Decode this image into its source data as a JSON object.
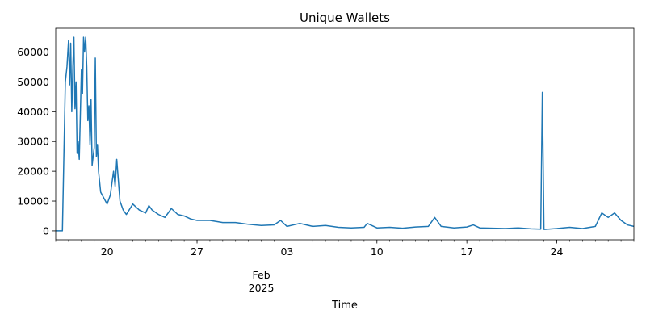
{
  "chart_data": {
    "type": "line",
    "title": "Unique Wallets",
    "xlabel": "Time",
    "ylabel": "",
    "grid": false,
    "legend": "none",
    "xlim": [
      "2025-01-16",
      "2025-03-02"
    ],
    "ylim": [
      -3000,
      68000
    ],
    "yticks": [
      0,
      10000,
      20000,
      30000,
      40000,
      50000,
      60000
    ],
    "ytick_labels": [
      "0",
      "10000",
      "20000",
      "30000",
      "40000",
      "50000",
      "60000"
    ],
    "xticks": [
      {
        "date": "2025-01-20",
        "label": "20"
      },
      {
        "date": "2025-01-27",
        "label": "27"
      },
      {
        "date": "2025-02-03",
        "label": "03"
      },
      {
        "date": "2025-02-10",
        "label": "10"
      },
      {
        "date": "2025-02-17",
        "label": "17"
      },
      {
        "date": "2025-02-24",
        "label": "24"
      }
    ],
    "x_secondary_label": [
      "Feb",
      "2025"
    ],
    "x_secondary_date": "2025-02-01",
    "series": [
      {
        "color": "#1f77b4",
        "points": [
          [
            "2025-01-16 00:00",
            0
          ],
          [
            "2025-01-16 12:00",
            0
          ],
          [
            "2025-01-16 12:30",
            0
          ],
          [
            "2025-01-16 18:00",
            50000
          ],
          [
            "2025-01-16 21:00",
            55000
          ],
          [
            "2025-01-17 00:00",
            64000
          ],
          [
            "2025-01-17 02:00",
            49000
          ],
          [
            "2025-01-17 04:00",
            63000
          ],
          [
            "2025-01-17 06:00",
            40000
          ],
          [
            "2025-01-17 08:00",
            55000
          ],
          [
            "2025-01-17 10:00",
            65000
          ],
          [
            "2025-01-17 12:00",
            41000
          ],
          [
            "2025-01-17 14:00",
            50000
          ],
          [
            "2025-01-17 16:00",
            26000
          ],
          [
            "2025-01-17 18:00",
            30000
          ],
          [
            "2025-01-17 20:00",
            24000
          ],
          [
            "2025-01-18 00:00",
            54000
          ],
          [
            "2025-01-18 02:00",
            46000
          ],
          [
            "2025-01-18 04:00",
            65000
          ],
          [
            "2025-01-18 06:00",
            60000
          ],
          [
            "2025-01-18 08:00",
            65000
          ],
          [
            "2025-01-18 10:00",
            55000
          ],
          [
            "2025-01-18 12:00",
            37000
          ],
          [
            "2025-01-18 14:00",
            42000
          ],
          [
            "2025-01-18 16:00",
            29000
          ],
          [
            "2025-01-18 18:00",
            44000
          ],
          [
            "2025-01-18 20:00",
            22000
          ],
          [
            "2025-01-19 00:00",
            28000
          ],
          [
            "2025-01-19 02:00",
            58000
          ],
          [
            "2025-01-19 04:00",
            25000
          ],
          [
            "2025-01-19 06:00",
            29000
          ],
          [
            "2025-01-19 08:00",
            20000
          ],
          [
            "2025-01-19 12:00",
            13000
          ],
          [
            "2025-01-19 18:00",
            11000
          ],
          [
            "2025-01-20 00:00",
            9000
          ],
          [
            "2025-01-20 06:00",
            12000
          ],
          [
            "2025-01-20 12:00",
            20000
          ],
          [
            "2025-01-20 15:00",
            15000
          ],
          [
            "2025-01-20 18:00",
            24000
          ],
          [
            "2025-01-21 00:00",
            10000
          ],
          [
            "2025-01-21 06:00",
            7000
          ],
          [
            "2025-01-21 12:00",
            5500
          ],
          [
            "2025-01-22 00:00",
            9000
          ],
          [
            "2025-01-22 12:00",
            7000
          ],
          [
            "2025-01-23 00:00",
            6000
          ],
          [
            "2025-01-23 06:00",
            8500
          ],
          [
            "2025-01-23 12:00",
            7000
          ],
          [
            "2025-01-24 00:00",
            5500
          ],
          [
            "2025-01-24 12:00",
            4500
          ],
          [
            "2025-01-25 00:00",
            7500
          ],
          [
            "2025-01-25 12:00",
            5500
          ],
          [
            "2025-01-26 00:00",
            5000
          ],
          [
            "2025-01-26 12:00",
            4000
          ],
          [
            "2025-01-27 00:00",
            3500
          ],
          [
            "2025-01-28 00:00",
            3500
          ],
          [
            "2025-01-29 00:00",
            2800
          ],
          [
            "2025-01-30 00:00",
            2800
          ],
          [
            "2025-01-31 00:00",
            2200
          ],
          [
            "2025-02-01 00:00",
            1800
          ],
          [
            "2025-02-02 00:00",
            2000
          ],
          [
            "2025-02-02 12:00",
            3500
          ],
          [
            "2025-02-03 00:00",
            1500
          ],
          [
            "2025-02-04 00:00",
            2500
          ],
          [
            "2025-02-05 00:00",
            1500
          ],
          [
            "2025-02-06 00:00",
            1800
          ],
          [
            "2025-02-07 00:00",
            1200
          ],
          [
            "2025-02-08 00:00",
            1000
          ],
          [
            "2025-02-09 00:00",
            1200
          ],
          [
            "2025-02-09 06:00",
            2500
          ],
          [
            "2025-02-10 00:00",
            1000
          ],
          [
            "2025-02-11 00:00",
            1200
          ],
          [
            "2025-02-12 00:00",
            900
          ],
          [
            "2025-02-13 00:00",
            1300
          ],
          [
            "2025-02-14 00:00",
            1500
          ],
          [
            "2025-02-14 12:00",
            4500
          ],
          [
            "2025-02-15 00:00",
            1500
          ],
          [
            "2025-02-16 00:00",
            1000
          ],
          [
            "2025-02-17 00:00",
            1300
          ],
          [
            "2025-02-17 12:00",
            2000
          ],
          [
            "2025-02-18 00:00",
            1000
          ],
          [
            "2025-02-19 00:00",
            900
          ],
          [
            "2025-02-20 00:00",
            800
          ],
          [
            "2025-02-21 00:00",
            1000
          ],
          [
            "2025-02-22 00:00",
            700
          ],
          [
            "2025-02-22 18:00",
            600
          ],
          [
            "2025-02-22 21:00",
            46500
          ],
          [
            "2025-02-23 00:00",
            500
          ],
          [
            "2025-02-24 00:00",
            800
          ],
          [
            "2025-02-25 00:00",
            1200
          ],
          [
            "2025-02-26 00:00",
            800
          ],
          [
            "2025-02-27 00:00",
            1500
          ],
          [
            "2025-02-27 12:00",
            6000
          ],
          [
            "2025-02-28 00:00",
            4500
          ],
          [
            "2025-02-28 12:00",
            6000
          ],
          [
            "2025-03-01 00:00",
            3500
          ],
          [
            "2025-03-01 12:00",
            2000
          ],
          [
            "2025-03-02 00:00",
            1500
          ]
        ]
      }
    ]
  }
}
